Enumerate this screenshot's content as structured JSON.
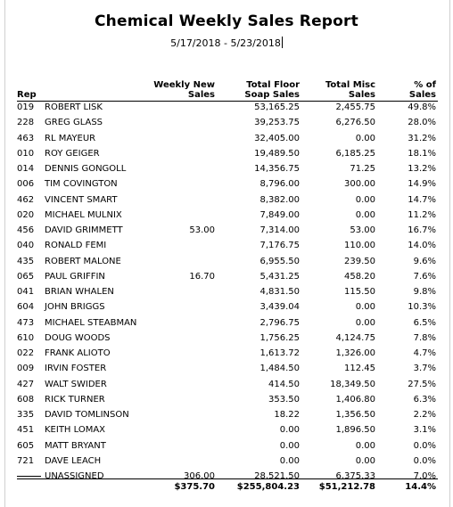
{
  "report": {
    "title": "Chemical Weekly Sales Report",
    "date_range": "5/17/2018 - 5/23/2018"
  },
  "headers": {
    "rep": "Rep",
    "weekly_new_1": "Weekly New",
    "weekly_new_2": "Sales",
    "floor_1": "Total Floor",
    "floor_2": "Soap Sales",
    "misc_1": "Total Misc",
    "misc_2": "Sales",
    "pct_1": "% of",
    "pct_2": "Sales"
  },
  "rows": [
    {
      "code": "019",
      "name": "ROBERT LISK",
      "weekly": "",
      "floor": "53,165.25",
      "misc": "2,455.75",
      "pct": "49.8%"
    },
    {
      "code": "228",
      "name": "GREG GLASS",
      "weekly": "",
      "floor": "39,253.75",
      "misc": "6,276.50",
      "pct": "28.0%"
    },
    {
      "code": "463",
      "name": "RL MAYEUR",
      "weekly": "",
      "floor": "32,405.00",
      "misc": "0.00",
      "pct": "31.2%"
    },
    {
      "code": "010",
      "name": "ROY GEIGER",
      "weekly": "",
      "floor": "19,489.50",
      "misc": "6,185.25",
      "pct": "18.1%"
    },
    {
      "code": "014",
      "name": "DENNIS GONGOLL",
      "weekly": "",
      "floor": "14,356.75",
      "misc": "71.25",
      "pct": "13.2%"
    },
    {
      "code": "006",
      "name": "TIM COVINGTON",
      "weekly": "",
      "floor": "8,796.00",
      "misc": "300.00",
      "pct": "14.9%"
    },
    {
      "code": "462",
      "name": "VINCENT SMART",
      "weekly": "",
      "floor": "8,382.00",
      "misc": "0.00",
      "pct": "14.7%"
    },
    {
      "code": "020",
      "name": "MICHAEL MULNIX",
      "weekly": "",
      "floor": "7,849.00",
      "misc": "0.00",
      "pct": "11.2%"
    },
    {
      "code": "456",
      "name": "DAVID GRIMMETT",
      "weekly": "53.00",
      "floor": "7,314.00",
      "misc": "53.00",
      "pct": "16.7%"
    },
    {
      "code": "040",
      "name": "RONALD FEMI",
      "weekly": "",
      "floor": "7,176.75",
      "misc": "110.00",
      "pct": "14.0%"
    },
    {
      "code": "435",
      "name": "ROBERT MALONE",
      "weekly": "",
      "floor": "6,955.50",
      "misc": "239.50",
      "pct": "9.6%"
    },
    {
      "code": "065",
      "name": "PAUL GRIFFIN",
      "weekly": "16.70",
      "floor": "5,431.25",
      "misc": "458.20",
      "pct": "7.6%"
    },
    {
      "code": "041",
      "name": "BRIAN WHALEN",
      "weekly": "",
      "floor": "4,831.50",
      "misc": "115.50",
      "pct": "9.8%"
    },
    {
      "code": "604",
      "name": "JOHN BRIGGS",
      "weekly": "",
      "floor": "3,439.04",
      "misc": "0.00",
      "pct": "10.3%"
    },
    {
      "code": "473",
      "name": "MICHAEL STEABMAN",
      "weekly": "",
      "floor": "2,796.75",
      "misc": "0.00",
      "pct": "6.5%"
    },
    {
      "code": "610",
      "name": "DOUG WOODS",
      "weekly": "",
      "floor": "1,756.25",
      "misc": "4,124.75",
      "pct": "7.8%"
    },
    {
      "code": "022",
      "name": "FRANK ALIOTO",
      "weekly": "",
      "floor": "1,613.72",
      "misc": "1,326.00",
      "pct": "4.7%"
    },
    {
      "code": "009",
      "name": "IRVIN FOSTER",
      "weekly": "",
      "floor": "1,484.50",
      "misc": "112.45",
      "pct": "3.7%"
    },
    {
      "code": "427",
      "name": "WALT SWIDER",
      "weekly": "",
      "floor": "414.50",
      "misc": "18,349.50",
      "pct": "27.5%"
    },
    {
      "code": "608",
      "name": "RICK TURNER",
      "weekly": "",
      "floor": "353.50",
      "misc": "1,406.80",
      "pct": "6.3%"
    },
    {
      "code": "335",
      "name": "DAVID TOMLINSON",
      "weekly": "",
      "floor": "18.22",
      "misc": "1,356.50",
      "pct": "2.2%"
    },
    {
      "code": "451",
      "name": "KEITH LOMAX",
      "weekly": "",
      "floor": "0.00",
      "misc": "1,896.50",
      "pct": "3.1%"
    },
    {
      "code": "605",
      "name": "MATT BRYANT",
      "weekly": "",
      "floor": "0.00",
      "misc": "0.00",
      "pct": "0.0%"
    },
    {
      "code": "721",
      "name": "DAVE LEACH",
      "weekly": "",
      "floor": "0.00",
      "misc": "0.00",
      "pct": "0.0%"
    },
    {
      "code": "",
      "name": "UNASSIGNED",
      "weekly": "306.00",
      "floor": "28,521.50",
      "misc": "6,375.33",
      "pct": "7.0%",
      "dash": true
    }
  ],
  "totals": {
    "weekly": "$375.70",
    "floor": "$255,804.23",
    "misc": "$51,212.78",
    "pct": "14.4%"
  }
}
